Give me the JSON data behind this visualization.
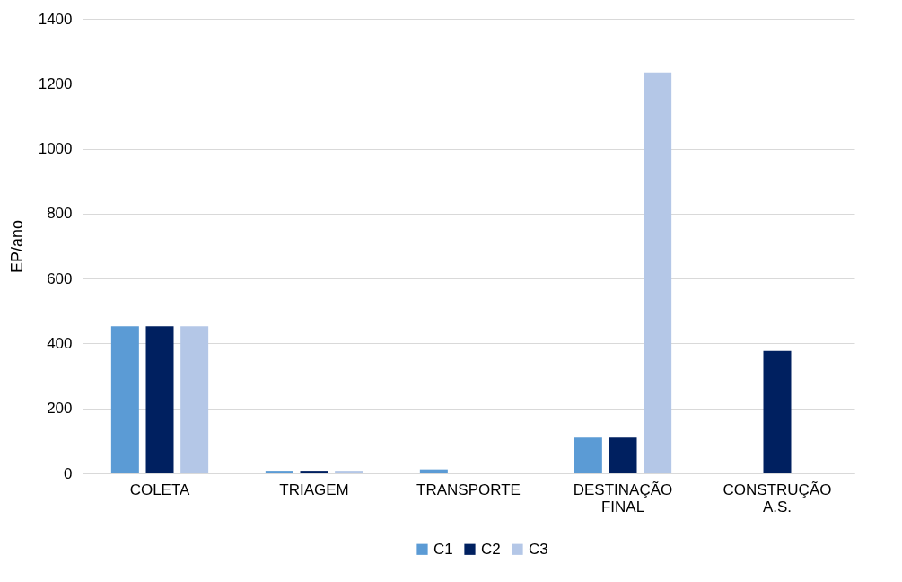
{
  "chart_data": {
    "type": "bar",
    "ylabel": "EP/ano",
    "categories": [
      "COLETA",
      "TRIAGEM",
      "TRANSPORTE",
      "DESTINAÇÃO FINAL",
      "CONSTRUÇÃO A.S."
    ],
    "series": [
      {
        "name": "C1",
        "color": "#5b9bd5",
        "values": [
          453,
          8,
          12,
          110,
          null
        ]
      },
      {
        "name": "C2",
        "color": "#002060",
        "values": [
          453,
          8,
          null,
          110,
          377
        ]
      },
      {
        "name": "C3",
        "color": "#b4c7e7",
        "values": [
          453,
          8,
          null,
          1235,
          null
        ]
      }
    ],
    "ylim": [
      0,
      1400
    ],
    "yticks": [
      0,
      200,
      400,
      600,
      800,
      1000,
      1200,
      1400
    ],
    "grid": "y",
    "legend": "bottom"
  }
}
